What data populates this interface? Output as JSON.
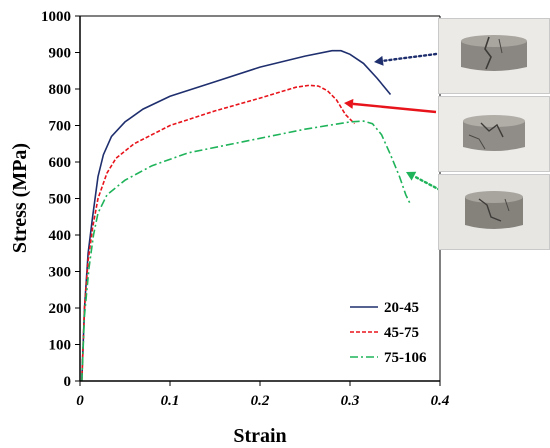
{
  "chart_data": {
    "type": "line",
    "xlabel": "Strain",
    "ylabel": "Stress (MPa)",
    "xlim": [
      0,
      0.4
    ],
    "ylim": [
      0,
      1000
    ],
    "xticks": [
      "0",
      "0.1",
      "0.2",
      "0.3",
      "0.4"
    ],
    "yticks": [
      "0",
      "100",
      "200",
      "300",
      "400",
      "500",
      "600",
      "700",
      "800",
      "900",
      "1000"
    ],
    "grid": false,
    "legend_position": "bottom-right",
    "series": [
      {
        "name": "20-45",
        "color": "#1f2f6e",
        "dash": "solid",
        "points": [
          [
            0.002,
            0
          ],
          [
            0.005,
            200
          ],
          [
            0.009,
            350
          ],
          [
            0.014,
            450
          ],
          [
            0.02,
            560
          ],
          [
            0.026,
            620
          ],
          [
            0.035,
            670
          ],
          [
            0.05,
            710
          ],
          [
            0.07,
            745
          ],
          [
            0.1,
            780
          ],
          [
            0.15,
            820
          ],
          [
            0.2,
            860
          ],
          [
            0.25,
            890
          ],
          [
            0.28,
            905
          ],
          [
            0.29,
            905
          ],
          [
            0.3,
            895
          ],
          [
            0.315,
            870
          ],
          [
            0.33,
            830
          ],
          [
            0.345,
            785
          ]
        ]
      },
      {
        "name": "45-75",
        "color": "#e8141b",
        "dash": "dashed",
        "points": [
          [
            0.002,
            0
          ],
          [
            0.005,
            200
          ],
          [
            0.009,
            330
          ],
          [
            0.014,
            420
          ],
          [
            0.02,
            500
          ],
          [
            0.03,
            570
          ],
          [
            0.04,
            610
          ],
          [
            0.06,
            650
          ],
          [
            0.1,
            700
          ],
          [
            0.15,
            740
          ],
          [
            0.2,
            775
          ],
          [
            0.24,
            805
          ],
          [
            0.255,
            810
          ],
          [
            0.265,
            808
          ],
          [
            0.275,
            795
          ],
          [
            0.285,
            770
          ],
          [
            0.295,
            730
          ],
          [
            0.305,
            705
          ]
        ]
      },
      {
        "name": "75-106",
        "color": "#1fb35a",
        "dash": "dashdot",
        "points": [
          [
            0.002,
            0
          ],
          [
            0.005,
            180
          ],
          [
            0.01,
            310
          ],
          [
            0.015,
            400
          ],
          [
            0.02,
            460
          ],
          [
            0.03,
            510
          ],
          [
            0.05,
            550
          ],
          [
            0.08,
            590
          ],
          [
            0.12,
            625
          ],
          [
            0.2,
            665
          ],
          [
            0.25,
            690
          ],
          [
            0.3,
            710
          ],
          [
            0.315,
            712
          ],
          [
            0.325,
            705
          ],
          [
            0.335,
            675
          ],
          [
            0.345,
            620
          ],
          [
            0.355,
            560
          ],
          [
            0.362,
            510
          ],
          [
            0.367,
            485
          ]
        ]
      }
    ]
  },
  "specimen_photos": [
    {
      "label": "20-45 fractured specimen",
      "arrow_color": "#1f2f6e",
      "arrow_style": "dotted"
    },
    {
      "label": "45-75 fractured specimen",
      "arrow_color": "#e8141b",
      "arrow_style": "solid"
    },
    {
      "label": "75-106 fractured specimen",
      "arrow_color": "#1fb35a",
      "arrow_style": "dotted"
    }
  ]
}
